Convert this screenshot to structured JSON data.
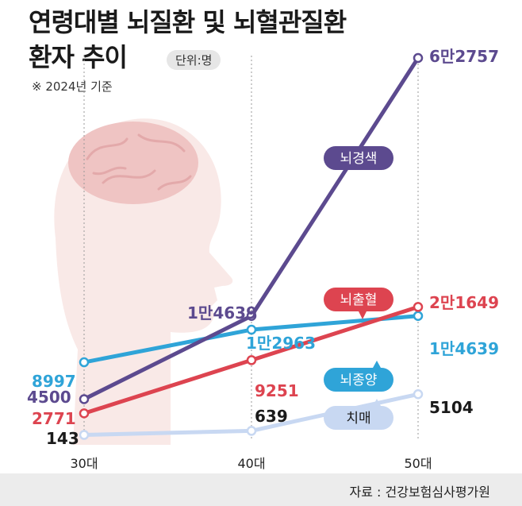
{
  "title_line1": "연령대별 뇌질환 및 뇌혈관질환",
  "title_line2": "환자 추이",
  "unit": "단위:명",
  "note": "※ 2024년 기준",
  "source": "자료 : 건강보험심사평가원",
  "chart_data": {
    "type": "line",
    "categories": [
      "30대",
      "40대",
      "50대"
    ],
    "series": [
      {
        "name": "뇌경색",
        "color": "#5c4a8f",
        "values": [
          4500,
          14639,
          62757
        ],
        "labels": [
          "4500",
          "1만4639",
          "6만2757"
        ]
      },
      {
        "name": "뇌출혈",
        "color": "#dd4450",
        "values": [
          2771,
          9251,
          21649
        ],
        "labels": [
          "2771",
          "9251",
          "2만1649"
        ]
      },
      {
        "name": "뇌종양",
        "color": "#2fa4d8",
        "values": [
          8997,
          12963,
          14639
        ],
        "labels": [
          "8997",
          "1만2963",
          "1만4639"
        ]
      },
      {
        "name": "치매",
        "color": "#c8d8f2",
        "values": [
          143,
          639,
          5104
        ],
        "labels": [
          "143",
          "639",
          "5104"
        ]
      }
    ],
    "label_colors": {
      "뇌경색": "#5c4a8f",
      "뇌출혈": "#dd4450",
      "뇌종양": "#2fa4d8",
      "치매": "#1a1a1a"
    },
    "badge_colors": {
      "뇌경색": "#5c4a8f",
      "뇌출혈": "#dd4450",
      "뇌종양": "#2fa4d8",
      "치매": "#c8d8f2"
    },
    "badge_text_colors": {
      "뇌경색": "#ffffff",
      "뇌출혈": "#ffffff",
      "뇌종양": "#ffffff",
      "치매": "#1a1a1a"
    }
  }
}
